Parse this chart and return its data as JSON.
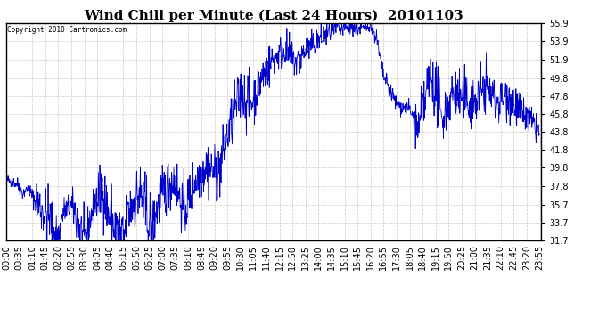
{
  "title": "Wind Chill per Minute (Last 24 Hours)  20101103",
  "copyright_text": "Copyright 2010 Cartronics.com",
  "line_color": "#0000cc",
  "bg_color": "#ffffff",
  "plot_bg_color": "#ffffff",
  "ylim": [
    31.7,
    55.9
  ],
  "yticks": [
    31.7,
    33.7,
    35.7,
    37.8,
    39.8,
    41.8,
    43.8,
    45.8,
    47.8,
    49.8,
    51.9,
    53.9,
    55.9
  ],
  "grid_color": "#bbbbbb",
  "title_fontsize": 11,
  "tick_fontsize": 7,
  "xtick_step_minutes": 35
}
